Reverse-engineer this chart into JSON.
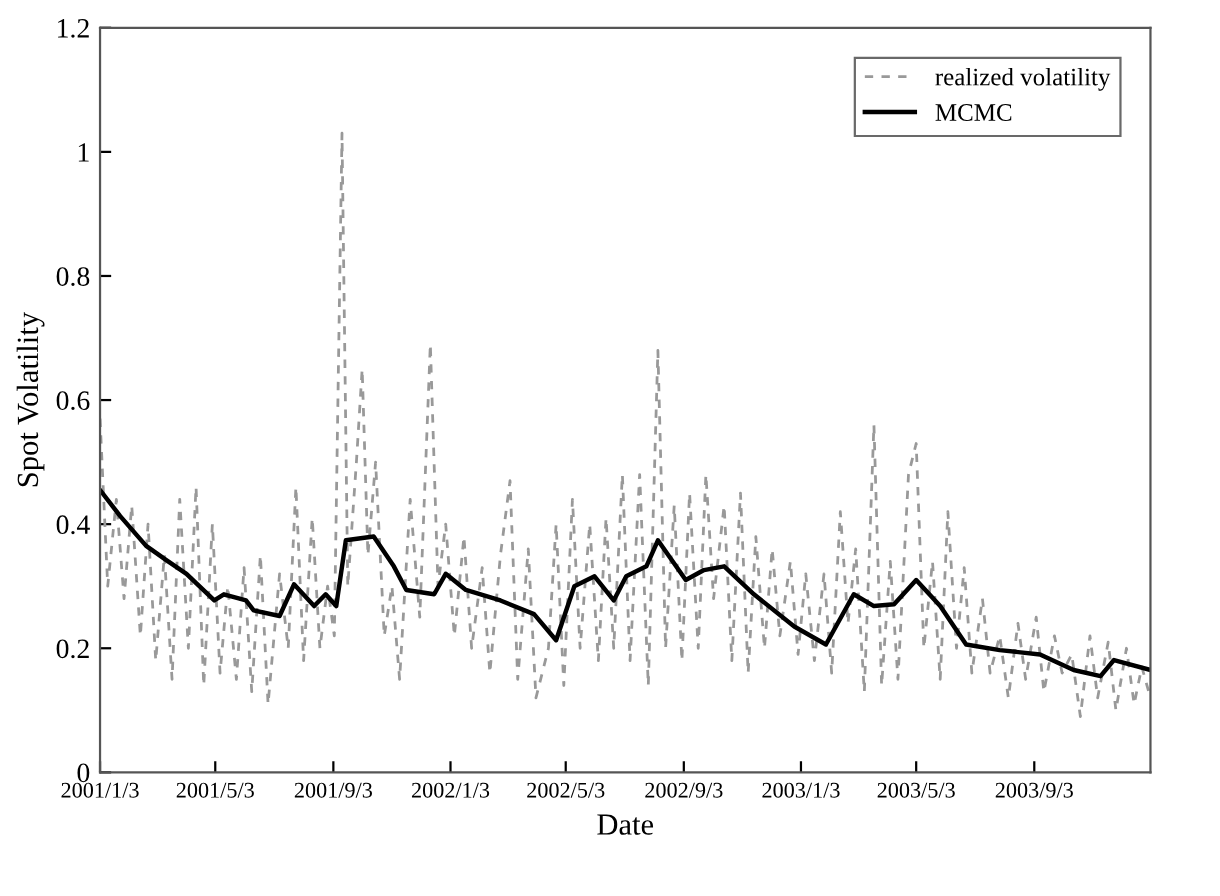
{
  "chart_data": {
    "type": "line",
    "xlabel": "Date",
    "ylabel": "Spot Volatility",
    "xlim": [
      "2001-01-03",
      "2004-01-02"
    ],
    "ylim": [
      0,
      1.2
    ],
    "xticks": [
      {
        "value": "2001-01-03",
        "label": "2001/1/3"
      },
      {
        "value": "2001-05-03",
        "label": "2001/5/3"
      },
      {
        "value": "2001-09-03",
        "label": "2001/9/3"
      },
      {
        "value": "2002-01-03",
        "label": "2002/1/3"
      },
      {
        "value": "2002-05-03",
        "label": "2002/5/3"
      },
      {
        "value": "2002-09-03",
        "label": "2002/9/3"
      },
      {
        "value": "2003-01-03",
        "label": "2003/1/3"
      },
      {
        "value": "2003-05-03",
        "label": "2003/5/3"
      },
      {
        "value": "2003-09-03",
        "label": "2003/9/3"
      }
    ],
    "yticks": [
      0,
      0.2,
      0.4,
      0.6,
      0.8,
      1,
      1.2
    ],
    "grid": false,
    "legend": "top right",
    "series": [
      {
        "name": "realized volatility",
        "color": "#999999",
        "line_style": "dashed",
        "x": [
          "2001-01-03",
          "2001-01-11",
          "2001-01-20",
          "2001-01-28",
          "2001-02-05",
          "2001-02-14",
          "2001-02-22",
          "2001-03-02",
          "2001-03-11",
          "2001-03-19",
          "2001-03-27",
          "2001-04-05",
          "2001-04-13",
          "2001-04-21",
          "2001-04-30",
          "2001-05-08",
          "2001-05-16",
          "2001-05-25",
          "2001-06-02",
          "2001-06-10",
          "2001-06-19",
          "2001-06-27",
          "2001-07-09",
          "2001-07-18",
          "2001-07-26",
          "2001-08-03",
          "2001-08-12",
          "2001-08-20",
          "2001-08-28",
          "2001-09-04",
          "2001-09-12",
          "2001-09-18",
          "2001-09-27",
          "2001-10-03",
          "2001-10-09",
          "2001-10-17",
          "2001-10-26",
          "2001-11-03",
          "2001-11-11",
          "2001-11-22",
          "2001-12-02",
          "2001-12-13",
          "2001-12-21",
          "2001-12-29",
          "2002-01-07",
          "2002-01-17",
          "2002-01-25",
          "2002-02-05",
          "2002-02-13",
          "2002-02-24",
          "2002-03-06",
          "2002-03-14",
          "2002-03-25",
          "2002-04-02",
          "2002-04-15",
          "2002-04-23",
          "2002-05-01",
          "2002-05-10",
          "2002-05-18",
          "2002-05-28",
          "2002-06-06",
          "2002-06-14",
          "2002-06-22",
          "2002-07-01",
          "2002-07-09",
          "2002-07-19",
          "2002-07-28",
          "2002-08-07",
          "2002-08-15",
          "2002-08-24",
          "2002-09-01",
          "2002-09-09",
          "2002-09-18",
          "2002-09-26",
          "2002-10-04",
          "2002-10-15",
          "2002-10-23",
          "2002-11-01",
          "2002-11-09",
          "2002-11-17",
          "2002-11-26",
          "2002-12-04",
          "2002-12-12",
          "2002-12-23",
          "2002-12-31",
          "2003-01-08",
          "2003-01-17",
          "2003-01-27",
          "2003-02-04",
          "2003-02-13",
          "2003-02-21",
          "2003-03-01",
          "2003-03-10",
          "2003-03-20",
          "2003-03-28",
          "2003-04-06",
          "2003-04-14",
          "2003-04-25",
          "2003-05-03",
          "2003-05-11",
          "2003-05-20",
          "2003-05-28",
          "2003-06-05",
          "2003-06-14",
          "2003-06-22",
          "2003-06-30",
          "2003-07-11",
          "2003-07-19",
          "2003-07-29",
          "2003-08-07",
          "2003-08-17",
          "2003-08-25",
          "2003-09-05",
          "2003-09-13",
          "2003-09-24",
          "2003-10-02",
          "2003-10-12",
          "2003-10-21",
          "2003-10-31",
          "2003-11-08",
          "2003-11-19",
          "2003-11-27",
          "2003-12-08",
          "2003-12-16",
          "2003-12-24",
          "2004-01-02"
        ],
        "values": [
          0.57,
          0.3,
          0.44,
          0.28,
          0.43,
          0.22,
          0.4,
          0.18,
          0.35,
          0.15,
          0.44,
          0.2,
          0.46,
          0.14,
          0.4,
          0.16,
          0.3,
          0.15,
          0.33,
          0.13,
          0.35,
          0.11,
          0.32,
          0.2,
          0.46,
          0.18,
          0.41,
          0.2,
          0.3,
          0.22,
          1.03,
          0.3,
          0.5,
          0.65,
          0.35,
          0.5,
          0.22,
          0.3,
          0.15,
          0.44,
          0.25,
          0.69,
          0.3,
          0.4,
          0.22,
          0.38,
          0.2,
          0.33,
          0.16,
          0.35,
          0.47,
          0.15,
          0.36,
          0.12,
          0.2,
          0.4,
          0.14,
          0.44,
          0.2,
          0.4,
          0.18,
          0.41,
          0.2,
          0.48,
          0.18,
          0.48,
          0.14,
          0.68,
          0.2,
          0.43,
          0.18,
          0.45,
          0.2,
          0.48,
          0.28,
          0.43,
          0.18,
          0.45,
          0.16,
          0.38,
          0.2,
          0.36,
          0.22,
          0.34,
          0.19,
          0.32,
          0.18,
          0.32,
          0.16,
          0.42,
          0.24,
          0.36,
          0.13,
          0.56,
          0.14,
          0.34,
          0.15,
          0.48,
          0.53,
          0.2,
          0.34,
          0.15,
          0.42,
          0.2,
          0.33,
          0.16,
          0.28,
          0.16,
          0.22,
          0.12,
          0.24,
          0.15,
          0.25,
          0.13,
          0.22,
          0.16,
          0.19,
          0.09,
          0.22,
          0.12,
          0.21,
          0.1,
          0.2,
          0.11,
          0.17,
          0.12
        ]
      },
      {
        "name": "MCMC",
        "color": "#000000",
        "line_style": "solid",
        "x": [
          "2001-01-03",
          "2001-01-24",
          "2001-02-20",
          "2001-03-13",
          "2001-04-03",
          "2001-05-02",
          "2001-05-12",
          "2001-06-04",
          "2001-06-12",
          "2001-07-09",
          "2001-07-24",
          "2001-08-14",
          "2001-08-26",
          "2001-09-06",
          "2001-09-16",
          "2001-10-15",
          "2001-11-05",
          "2001-11-18",
          "2001-12-17",
          "2001-12-29",
          "2002-01-19",
          "2002-02-24",
          "2002-03-31",
          "2002-04-23",
          "2002-05-12",
          "2002-06-02",
          "2002-06-22",
          "2002-07-05",
          "2002-07-26",
          "2002-08-07",
          "2002-09-05",
          "2002-09-24",
          "2002-10-15",
          "2002-11-15",
          "2002-12-27",
          "2003-01-29",
          "2003-02-27",
          "2003-03-20",
          "2003-04-10",
          "2003-05-03",
          "2003-05-28",
          "2003-06-24",
          "2003-07-29",
          "2003-09-09",
          "2003-10-14",
          "2003-11-11",
          "2003-11-25",
          "2004-01-02"
        ],
        "values": [
          0.455,
          0.413,
          0.365,
          0.342,
          0.32,
          0.277,
          0.287,
          0.277,
          0.261,
          0.252,
          0.303,
          0.268,
          0.287,
          0.268,
          0.374,
          0.38,
          0.332,
          0.294,
          0.287,
          0.32,
          0.294,
          0.277,
          0.255,
          0.213,
          0.3,
          0.316,
          0.277,
          0.316,
          0.332,
          0.374,
          0.31,
          0.326,
          0.332,
          0.287,
          0.235,
          0.206,
          0.287,
          0.268,
          0.271,
          0.31,
          0.268,
          0.206,
          0.197,
          0.19,
          0.165,
          0.155,
          0.181,
          0.165
        ]
      }
    ]
  }
}
